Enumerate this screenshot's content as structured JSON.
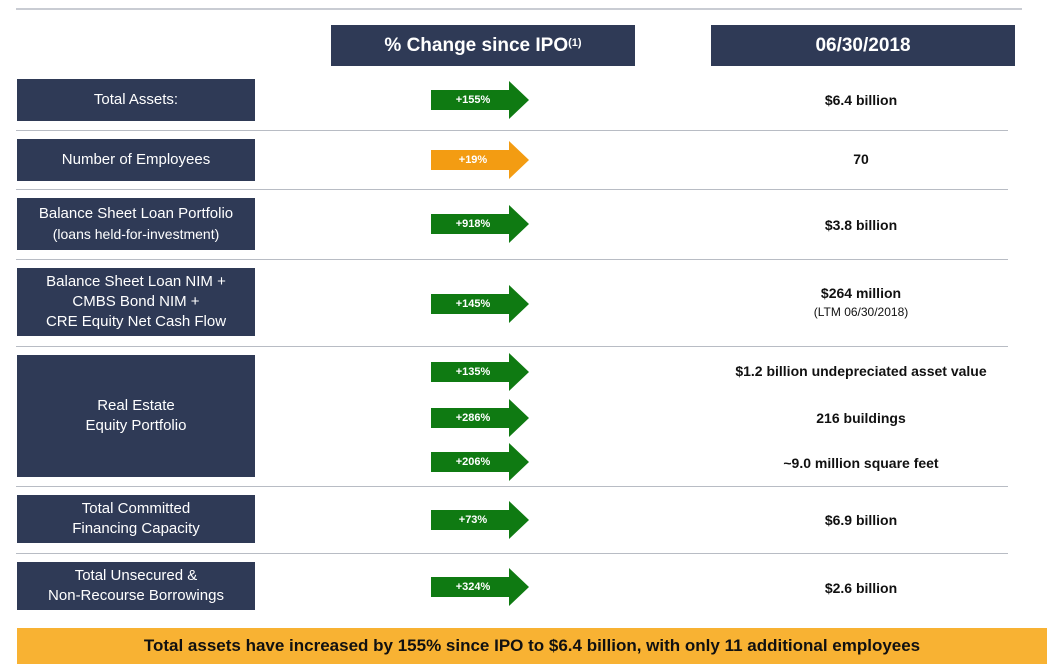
{
  "headers": {
    "change": "% Change since IPO",
    "change_note": "(1)",
    "date": "06/30/2018"
  },
  "rows": {
    "assets": {
      "label": "Total Assets:",
      "change": "+155%",
      "value": "$6.4 billion"
    },
    "employees": {
      "label": "Number of Employees",
      "change": "+19%",
      "value": "70"
    },
    "loan": {
      "label_line1": "Balance Sheet Loan Portfolio",
      "label_line2": "(loans held-for-investment)",
      "change": "+918%",
      "value": "$3.8 billion"
    },
    "nim": {
      "label_line1": "Balance Sheet Loan NIM +",
      "label_line2": "CMBS Bond NIM +",
      "label_line3": "CRE Equity Net Cash Flow",
      "change": "+145%",
      "value": "$264 million",
      "value_sub": "(LTM 06/30/2018)"
    },
    "realestate": {
      "label_line1": "Real Estate",
      "label_line2": "Equity Portfolio",
      "items": [
        {
          "change": "+135%",
          "value": "$1.2 billion undepreciated asset value"
        },
        {
          "change": "+286%",
          "value": "216 buildings"
        },
        {
          "change": "+206%",
          "value": "~9.0 million square feet"
        }
      ]
    },
    "financing": {
      "label_line1": "Total Committed",
      "label_line2": "Financing Capacity",
      "change": "+73%",
      "value": "$6.9 billion"
    },
    "borrowings": {
      "label_line1": "Total Unsecured &",
      "label_line2": "Non-Recourse Borrowings",
      "change": "+324%",
      "value": "$2.6 billion"
    }
  },
  "banner": "Total assets have increased by 155% since IPO to $6.4 billion, with only 11 additional employees",
  "colors": {
    "navy": "#2f3a56",
    "green": "#0f7a12",
    "orange": "#f39c12",
    "banner": "#f8b233"
  }
}
